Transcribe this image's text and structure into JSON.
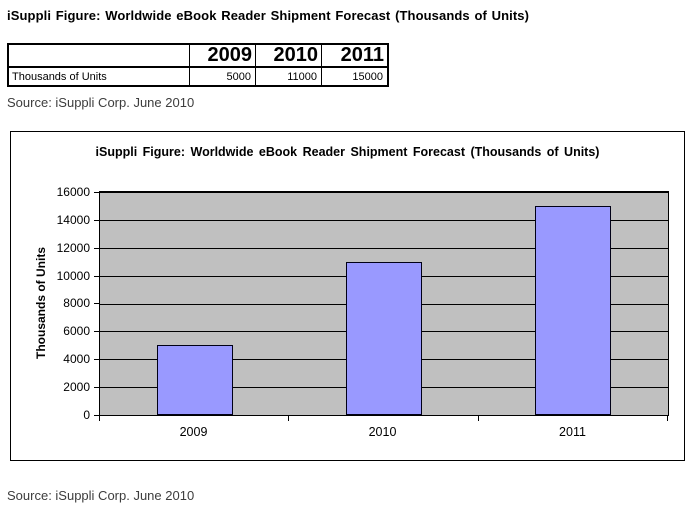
{
  "page": {
    "title": "iSuppli Figure: Worldwide eBook Reader Shipment Forecast (Thousands of Units)",
    "source_top": "Source: iSuppli Corp. June 2010",
    "source_bottom": "Source: iSuppli Corp. June 2010"
  },
  "table": {
    "row_label": "Thousands of Units",
    "columns": [
      "2009",
      "2010",
      "2011"
    ],
    "values": [
      "5000",
      "11000",
      "15000"
    ]
  },
  "chart_data": {
    "type": "bar",
    "title": "iSuppli Figure: Worldwide eBook Reader Shipment Forecast (Thousands of Units)",
    "categories": [
      "2009",
      "2010",
      "2011"
    ],
    "values": [
      5000,
      11000,
      15000
    ],
    "xlabel": "",
    "ylabel": "Thousands of Units",
    "ylim": [
      0,
      16000
    ],
    "ytick_step": 2000,
    "grid": true,
    "legend": "none",
    "colors": {
      "bar_fill": "#9999ff",
      "bar_border": "#000016",
      "plot_bg": "#c0c0c0",
      "grid_line": "#000000",
      "frame_border": "#000000",
      "source_text": "#3d3d3d"
    }
  }
}
